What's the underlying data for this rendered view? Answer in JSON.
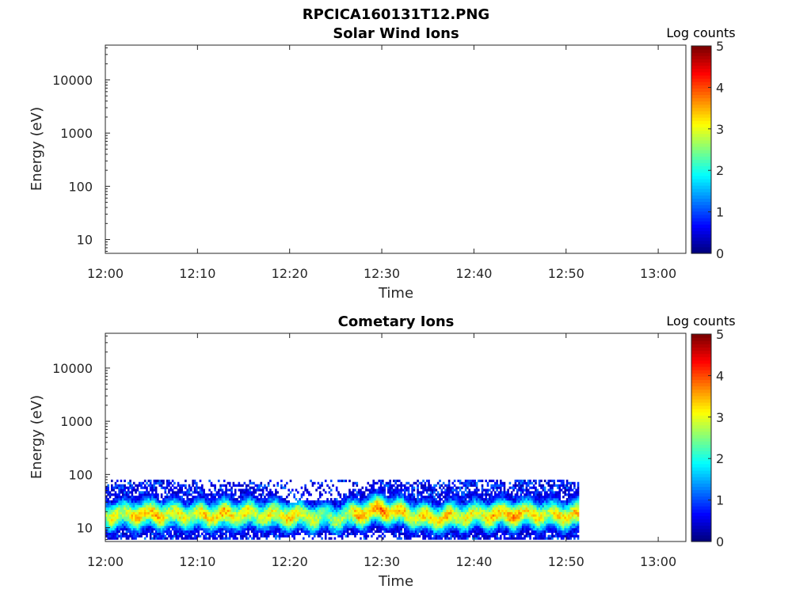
{
  "figure_title": "RPCICA160131T12.PNG",
  "chart_data": [
    {
      "type": "heatmap",
      "title": "Solar Wind Ions",
      "xlabel": "Time",
      "ylabel": "Energy (eV)",
      "x_range": [
        "12:00",
        "13:03"
      ],
      "x_ticks": [
        "12:00",
        "12:10",
        "12:20",
        "12:30",
        "12:40",
        "12:50",
        "13:00"
      ],
      "y_scale": "log",
      "y_range": [
        5.5,
        45000
      ],
      "y_ticks": [
        "10",
        "100",
        "1000",
        "10000"
      ],
      "colorbar": {
        "label": "Log counts",
        "range": [
          0,
          5
        ],
        "ticks": [
          "0",
          "1",
          "2",
          "3",
          "4",
          "5"
        ],
        "colormap": "jet"
      },
      "data": "empty (no counts shown)"
    },
    {
      "type": "heatmap",
      "title": "Cometary Ions",
      "xlabel": "Time",
      "ylabel": "Energy (eV)",
      "x_range": [
        "12:00",
        "13:03"
      ],
      "x_ticks": [
        "12:00",
        "12:10",
        "12:20",
        "12:30",
        "12:40",
        "12:50",
        "13:00"
      ],
      "y_scale": "log",
      "y_range": [
        5.5,
        45000
      ],
      "y_ticks": [
        "10",
        "100",
        "1000",
        "10000"
      ],
      "colorbar": {
        "label": "Log counts",
        "range": [
          0,
          5
        ],
        "ticks": [
          "0",
          "1",
          "2",
          "3",
          "4",
          "5"
        ],
        "colormap": "jet"
      },
      "data_extent": {
        "time_start": "12:00",
        "time_end": "12:51",
        "energy_min_eV": 6,
        "energy_max_eV": 80
      },
      "band_profile": {
        "time": [
          "12:00",
          "12:05",
          "12:10",
          "12:15",
          "12:20",
          "12:25",
          "12:30",
          "12:35",
          "12:40",
          "12:45",
          "12:50"
        ],
        "peak_energy_eV": [
          17,
          18,
          17,
          18,
          17,
          15,
          22,
          15,
          17,
          18,
          17
        ],
        "peak_log_counts": [
          3.1,
          3.2,
          3.1,
          3.2,
          3.0,
          2.7,
          3.7,
          3.0,
          3.3,
          3.3,
          3.2
        ],
        "upper_edge_eV": [
          60,
          80,
          60,
          75,
          30,
          35,
          80,
          70,
          80,
          80,
          80
        ],
        "lower_edge_eV": [
          6,
          6,
          6,
          6,
          7,
          7,
          8,
          6,
          6,
          6,
          6
        ]
      }
    }
  ]
}
